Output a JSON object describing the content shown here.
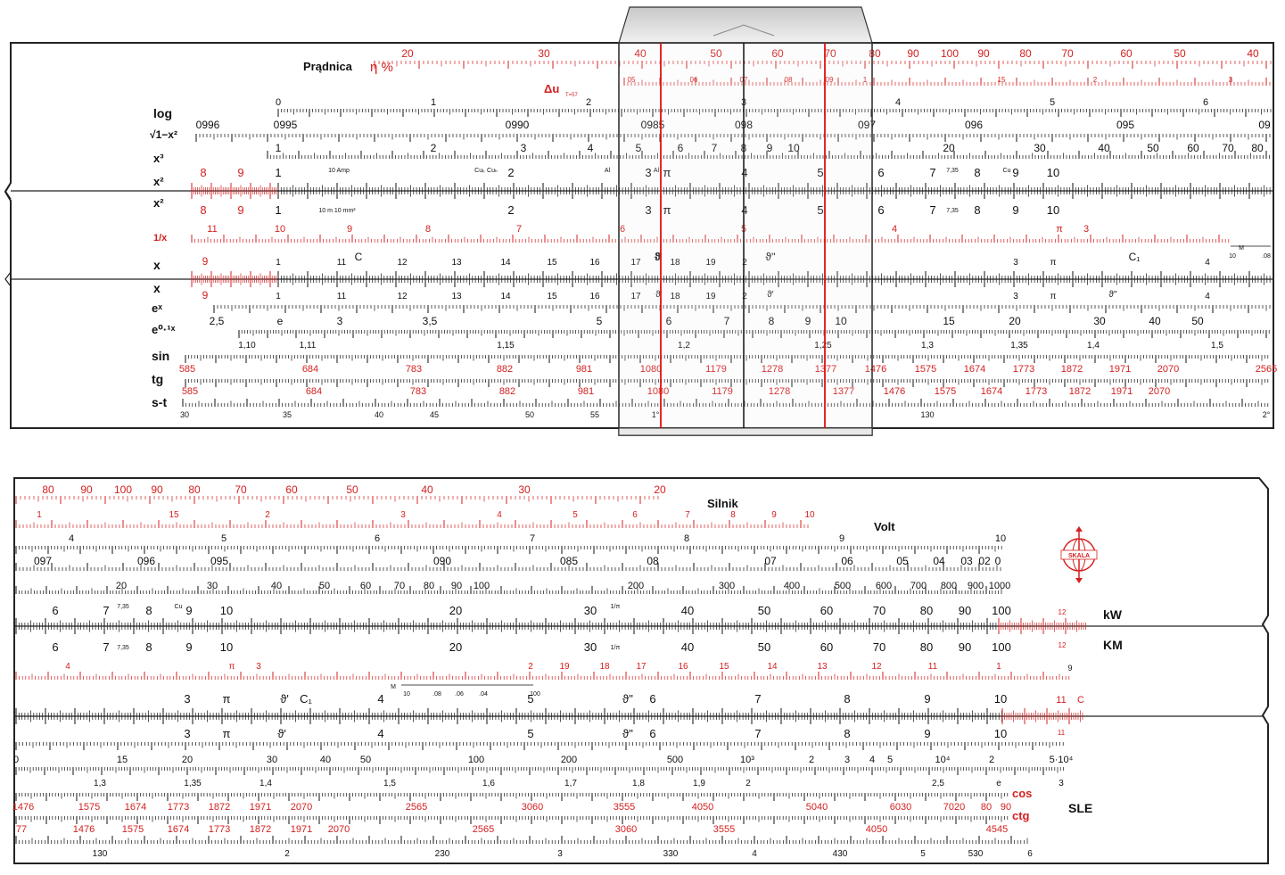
{
  "colors": {
    "black": "#111111",
    "red": "#d42020",
    "cursor_line": "#e01010",
    "body_edge": "#222222"
  },
  "top_half": {
    "rows": [
      {
        "id": "pradnica-eta",
        "label": "Prądnica",
        "label2": "η %",
        "color": "red",
        "style": "arc",
        "ticks": [
          {
            "from": "20",
            "to": "400",
            "count": 150
          }
        ],
        "numbers": [
          {
            "t": "20",
            "at": 0.02
          },
          {
            "t": "30",
            "at": 0.18
          },
          {
            "t": "40",
            "at": 0.33
          },
          {
            "t": "50",
            "at": 0.4
          },
          {
            "t": "60",
            "at": 0.47
          },
          {
            "t": "70",
            "at": 0.54
          },
          {
            "t": "80",
            "at": 0.61
          },
          {
            "t": "90",
            "at": 0.67
          },
          {
            "t": "100",
            "at": 0.72
          },
          {
            "t": "90",
            "at": 0.76
          },
          {
            "t": "80",
            "at": 0.82
          },
          {
            "t": "70",
            "at": 0.87
          },
          {
            "t": "60",
            "at": 0.92
          },
          {
            "t": "50",
            "at": 0.97
          }
        ]
      }
    ]
  },
  "labels_top": {
    "pradnica": "Prądnica",
    "eta": "η %",
    "delta_u": "Δu",
    "delta_sub": "T=57",
    "log": "log",
    "sqrt": "√1−x²",
    "x3": "x³",
    "x2a": "x²",
    "x2b": "x²",
    "inv_x": "1/x",
    "xa": "x",
    "xb": "x",
    "ex": "eˣ",
    "e01x": "e⁰·¹ˣ",
    "sin": "sin",
    "tg": "tg",
    "st": "s-t"
  },
  "labels_bottom": {
    "silnik": "Silnik",
    "volt": "Volt",
    "kw": "kW",
    "km": "KM",
    "cos": "cos",
    "ctg": "ctg",
    "sle": "SLE",
    "logo": "SKALA"
  },
  "top_scales": {
    "eta_nums": [
      "20",
      "30",
      "40",
      "50",
      "60",
      "70",
      "80",
      "90",
      "100",
      "90",
      "80",
      "70",
      "60",
      "50",
      "40"
    ],
    "du_nums": [
      "05",
      "06",
      "07",
      "08",
      "09",
      "1",
      "15",
      "2",
      "3"
    ],
    "log_nums": [
      "0",
      "1",
      "2",
      "3",
      "4",
      "5",
      "6"
    ],
    "sqrt_nums": [
      "0996",
      "0995",
      "0990",
      "0985",
      "098",
      "097",
      "096",
      "095",
      "09"
    ],
    "x3_nums": [
      "1",
      "2",
      "3",
      "4",
      "5",
      "6",
      "7",
      "8",
      "9",
      "10",
      "20",
      "30",
      "40",
      "50",
      "60",
      "70",
      "80"
    ],
    "x2a_red": [
      "8",
      "9"
    ],
    "x2a_nums": [
      "1",
      "2",
      "3",
      "π",
      "4",
      "5",
      "6",
      "7",
      "8",
      "9",
      "10"
    ],
    "x2a_marks": [
      "10 Amp",
      "Cuₖ Cuₕ",
      "Al",
      "Al",
      "7,35",
      "Cu"
    ],
    "x2b_red": [
      "8",
      "9"
    ],
    "x2b_nums": [
      "1",
      "2",
      "3",
      "π",
      "4",
      "5",
      "6",
      "7",
      "8",
      "9",
      "10"
    ],
    "x2b_marks": [
      "10 m 10 mm²",
      "7,35"
    ],
    "inv_nums": [
      "11",
      "10",
      "9",
      "8",
      "7",
      "6",
      "5",
      "4",
      "π",
      "3"
    ],
    "inv_m": "M",
    "inv_m_nums": [
      "10",
      ".08"
    ],
    "x_red": [
      "9"
    ],
    "xa_nums": [
      "1",
      "11",
      "12",
      "13",
      "14",
      "15",
      "16",
      "17",
      "18",
      "19",
      "2",
      "3",
      "π",
      "4"
    ],
    "xa_marks": [
      "C",
      "ϑ",
      "ϑ'",
      "ϑ''",
      "C₁"
    ],
    "xb_red": [
      "9"
    ],
    "xb_nums": [
      "1",
      "11",
      "12",
      "13",
      "14",
      "15",
      "16",
      "17",
      "18",
      "19",
      "2",
      "3",
      "π",
      "4"
    ],
    "xb_marks": [
      "ϑ",
      "ϑ'",
      "ϑ''"
    ],
    "ex_nums": [
      "2,5",
      "e",
      "3",
      "3,5",
      "5",
      "6",
      "7",
      "8",
      "9",
      "10",
      "15",
      "20",
      "30",
      "40",
      "50"
    ],
    "e01_nums": [
      "1,10",
      "1,11",
      "1,15",
      "1,2",
      "1,25",
      "1,3",
      "1,35",
      "1,4",
      "1,5"
    ],
    "sin_nums": [
      "585",
      "684",
      "783",
      "882",
      "981",
      "1080",
      "1179",
      "1278",
      "1377",
      "1476",
      "1575",
      "1674",
      "1773",
      "1872",
      "1971",
      "2070",
      "2565"
    ],
    "tg_nums": [
      "585",
      "684",
      "783",
      "882",
      "981",
      "1080",
      "1179",
      "1278",
      "1377",
      "1476",
      "1575",
      "1674",
      "1773",
      "1872",
      "1971",
      "2070"
    ],
    "st_nums": [
      "30",
      "35",
      "40",
      "45",
      "50",
      "55",
      "1°",
      "130",
      "2°"
    ]
  },
  "bottom_scales": {
    "eta_nums": [
      "80",
      "90",
      "100",
      "90",
      "80",
      "70",
      "60",
      "50",
      "40",
      "30",
      "20"
    ],
    "du_nums": [
      "1",
      "15",
      "2",
      "3",
      "4",
      "5",
      "6",
      "7",
      "8",
      "9",
      "10"
    ],
    "log_nums": [
      "4",
      "5",
      "6",
      "7",
      "8",
      "9",
      "10"
    ],
    "sqrt_nums": [
      "097",
      "096",
      "095",
      "090",
      "085",
      "08",
      "07",
      "06",
      "05",
      "04",
      "03",
      "02",
      "0"
    ],
    "x3_nums": [
      "20",
      "30",
      "40",
      "50",
      "60",
      "70",
      "80",
      "90",
      "100",
      "200",
      "300",
      "400",
      "500",
      "600",
      "700",
      "800",
      "900",
      "1000"
    ],
    "x2a_nums": [
      "6",
      "7",
      "8",
      "9",
      "10",
      "20",
      "30",
      "40",
      "50",
      "60",
      "70",
      "80",
      "90",
      "100"
    ],
    "x2a_red": [
      "12"
    ],
    "x2a_marks": [
      "7,35",
      "Cu",
      "1/π"
    ],
    "x2b_nums": [
      "6",
      "7",
      "8",
      "9",
      "10",
      "20",
      "30",
      "40",
      "50",
      "60",
      "70",
      "80",
      "90",
      "100"
    ],
    "x2b_red": [
      "12"
    ],
    "x2b_marks": [
      "7,35",
      "1/π"
    ],
    "inv_red": [
      "4",
      "π",
      "3",
      "2",
      "19",
      "18",
      "17",
      "16",
      "15",
      "14",
      "13",
      "12",
      "11",
      "1"
    ],
    "inv_black": [
      "9"
    ],
    "inv_m": "M",
    "inv_m_nums": [
      "10",
      ".08",
      ".06",
      ".04",
      "100"
    ],
    "xa_nums": [
      "3",
      "π",
      "ϑ'",
      "C₁",
      "4",
      "5",
      "ϑ''",
      "6",
      "7",
      "8",
      "9",
      "10"
    ],
    "xa_red": [
      "11",
      "C"
    ],
    "xb_nums": [
      "3",
      "π",
      "ϑ'",
      "4",
      "5",
      "ϑ''",
      "6",
      "7",
      "8",
      "9",
      "10"
    ],
    "xb_red": [
      "11"
    ],
    "ex_nums": [
      "0",
      "15",
      "20",
      "30",
      "40",
      "50",
      "100",
      "200",
      "500",
      "10³",
      "2",
      "3",
      "4",
      "5",
      "10⁴",
      "2",
      "5·10⁴"
    ],
    "e01_nums": [
      "1,3",
      "1,35",
      "1,4",
      "1,5",
      "1,6",
      "1,7",
      "1,8",
      "1,9",
      "2",
      "2,5",
      "e",
      "3"
    ],
    "sin_nums": [
      "1476",
      "1575",
      "1674",
      "1773",
      "1872",
      "1971",
      "2070",
      "2565",
      "3060",
      "3555",
      "4050",
      "5040",
      "6030",
      "7020",
      "80",
      "90"
    ],
    "tg_nums": [
      "77",
      "1476",
      "1575",
      "1674",
      "1773",
      "1872",
      "1971",
      "2070",
      "2565",
      "3060",
      "3555",
      "4050",
      "4545"
    ],
    "st_nums": [
      "130",
      "2",
      "230",
      "3",
      "330",
      "4",
      "430",
      "5",
      "530",
      "6"
    ]
  }
}
